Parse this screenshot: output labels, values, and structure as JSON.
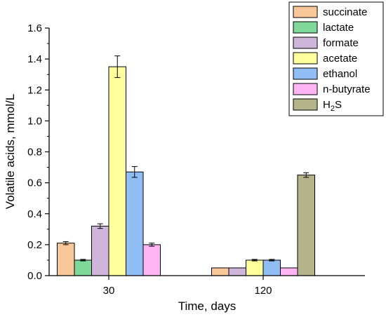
{
  "chart_data": {
    "type": "bar",
    "xlabel": "Time, days",
    "ylabel": "Volatile acids, mmol/L",
    "ylim": [
      0,
      1.6
    ],
    "yticks": [
      "0.0",
      "0.2",
      "0.4",
      "0.6",
      "0.8",
      "1.0",
      "1.2",
      "1.4",
      "1.6"
    ],
    "categories": [
      "30",
      "120"
    ],
    "grid": false,
    "legend_position": "top-right",
    "series": [
      {
        "name": "succinate",
        "color": "#f9c89a",
        "values": [
          0.21,
          0.05
        ],
        "errors": [
          0.01,
          0.0
        ]
      },
      {
        "name": "lactate",
        "color": "#7fd89a",
        "values": [
          0.1,
          null
        ],
        "errors": [
          0.005,
          0.0
        ]
      },
      {
        "name": "formate",
        "color": "#cfb5da",
        "values": [
          0.32,
          0.05
        ],
        "errors": [
          0.015,
          0.0
        ]
      },
      {
        "name": "acetate",
        "color": "#ffff9e",
        "values": [
          1.35,
          0.1
        ],
        "errors": [
          0.07,
          0.005
        ]
      },
      {
        "name": "ethanol",
        "color": "#8fbdf4",
        "values": [
          0.67,
          0.1
        ],
        "errors": [
          0.035,
          0.005
        ]
      },
      {
        "name": "n-butyrate",
        "color": "#ffb4f4",
        "values": [
          0.2,
          0.05
        ],
        "errors": [
          0.01,
          0.0
        ]
      },
      {
        "name": "H2S",
        "name_base": "H",
        "name_sub": "2",
        "name_tail": "S",
        "color": "#b5b38a",
        "values": [
          null,
          0.65
        ],
        "errors": [
          0.0,
          0.015
        ]
      }
    ]
  }
}
